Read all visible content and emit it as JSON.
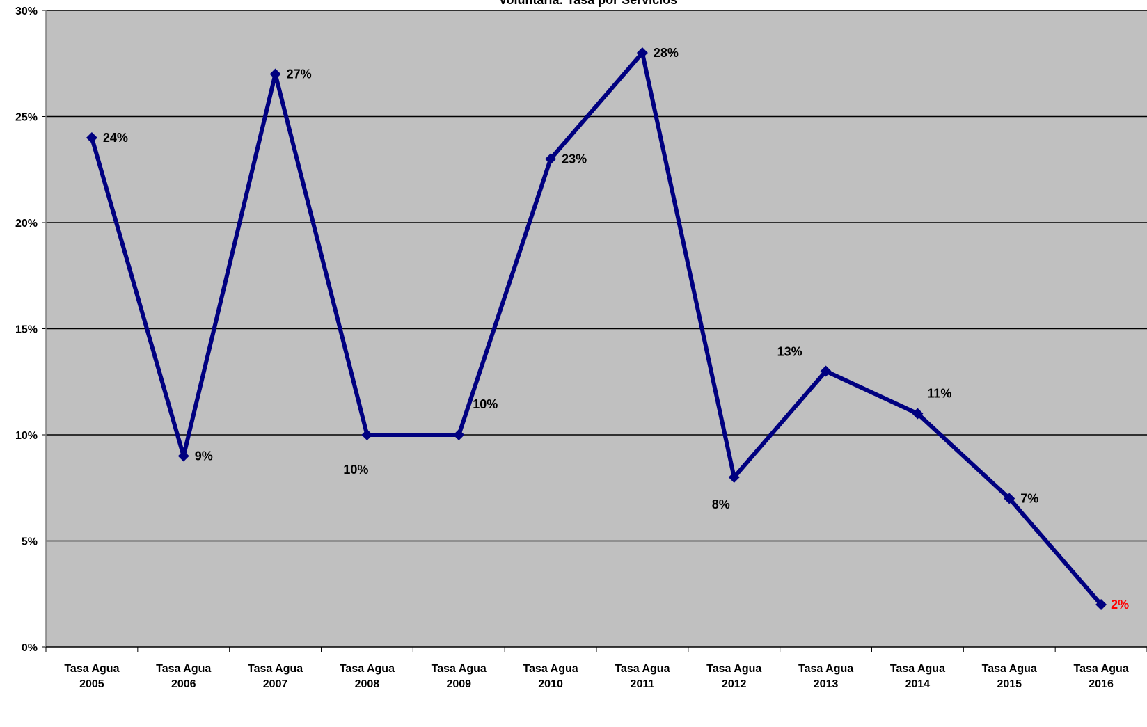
{
  "chart_data": {
    "type": "line",
    "title": "Voluntaria: Tasa por Servicios",
    "xlabel": "",
    "ylabel": "",
    "ylim": [
      0,
      30
    ],
    "y_ticks": [
      "0%",
      "5%",
      "10%",
      "15%",
      "20%",
      "25%",
      "30%"
    ],
    "grid": true,
    "categories": [
      [
        "Tasa Agua",
        "2005"
      ],
      [
        "Tasa Agua",
        "2006"
      ],
      [
        "Tasa Agua",
        "2007"
      ],
      [
        "Tasa Agua",
        "2008"
      ],
      [
        "Tasa Agua",
        "2009"
      ],
      [
        "Tasa Agua",
        "2010"
      ],
      [
        "Tasa  Agua",
        "2011"
      ],
      [
        "Tasa Agua",
        "2012"
      ],
      [
        "Tasa Agua",
        "2013"
      ],
      [
        "Tasa Agua",
        "2014"
      ],
      [
        "Tasa Agua",
        "2015"
      ],
      [
        "Tasa Agua",
        "2016"
      ]
    ],
    "series": [
      {
        "values": [
          24,
          9,
          27,
          10,
          10,
          23,
          28,
          8,
          13,
          11,
          7,
          2
        ],
        "data_labels": [
          "24%",
          "9%",
          "27%",
          "10%",
          "10%",
          "23%",
          "28%",
          "8%",
          "13%",
          "11%",
          "7%",
          "2%"
        ],
        "color": "#000080"
      }
    ],
    "label_colors": [
      "#000000",
      "#000000",
      "#000000",
      "#000000",
      "#000000",
      "#000000",
      "#000000",
      "#000000",
      "#000000",
      "#000000",
      "#000000",
      "#ff0000"
    ],
    "plot_background": "#c0c0c0",
    "gridline_color": "#000000"
  }
}
